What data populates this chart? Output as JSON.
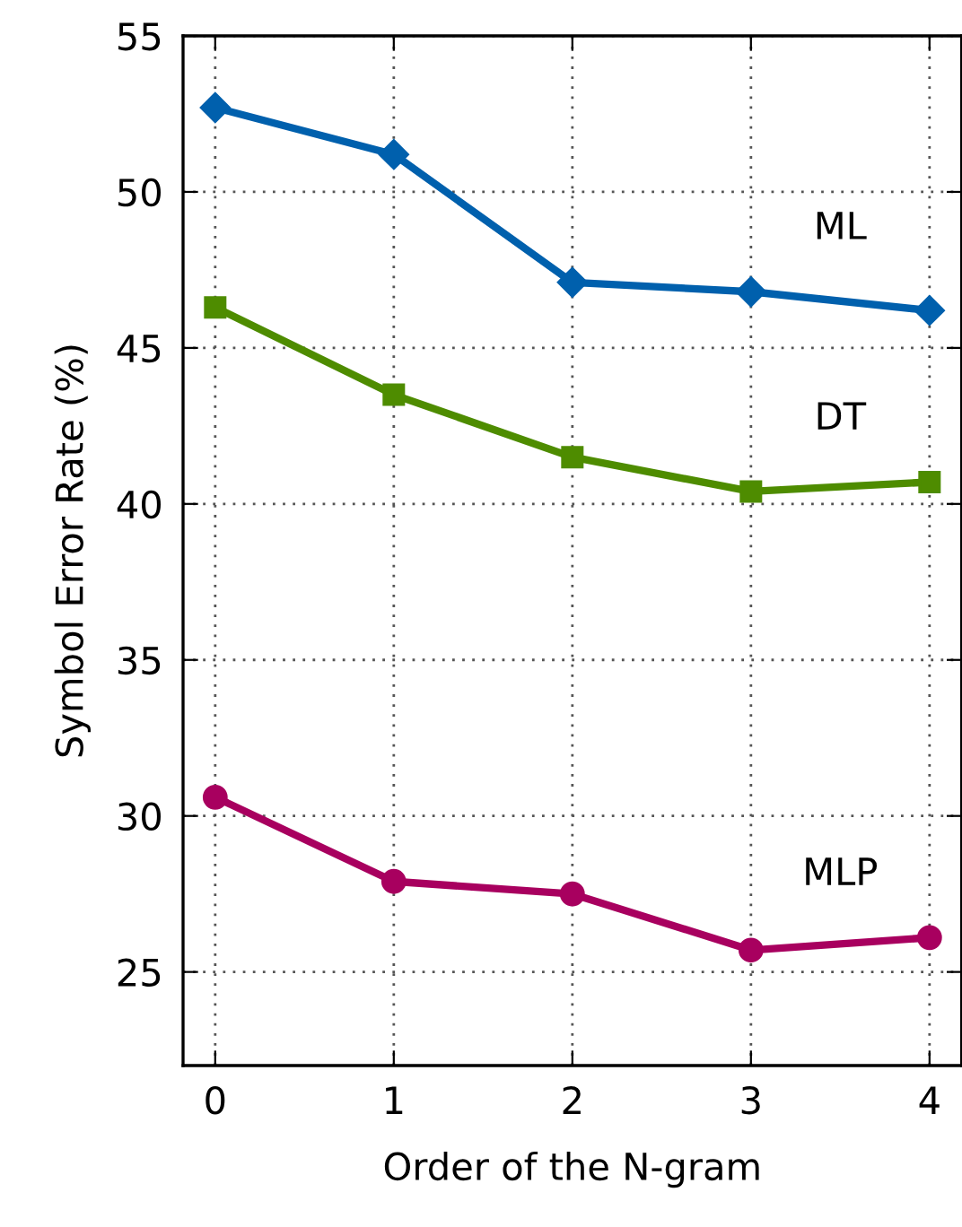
{
  "chart_data": {
    "type": "line",
    "xlabel": "Order of the N-gram",
    "ylabel": "Symbol Error Rate (%)",
    "x": [
      0,
      1,
      2,
      3,
      4
    ],
    "xlim": [
      -0.18,
      4.18
    ],
    "xticks": [
      0,
      1,
      2,
      3,
      4
    ],
    "ylim": [
      22,
      55
    ],
    "yticks": [
      25,
      30,
      35,
      40,
      45,
      50,
      55
    ],
    "grid": true,
    "legend": false,
    "line_style": "solid",
    "series": [
      {
        "name": "ML",
        "color": "#0060ad",
        "marker": "diamond",
        "values": [
          52.7,
          51.2,
          47.1,
          46.8,
          46.2
        ]
      },
      {
        "name": "DT",
        "color": "#4e8c00",
        "marker": "square",
        "values": [
          46.3,
          43.5,
          41.5,
          40.4,
          40.7
        ]
      },
      {
        "name": "MLP",
        "color": "#a8005f",
        "marker": "circle",
        "values": [
          30.6,
          27.9,
          27.5,
          25.7,
          26.1
        ]
      }
    ]
  }
}
